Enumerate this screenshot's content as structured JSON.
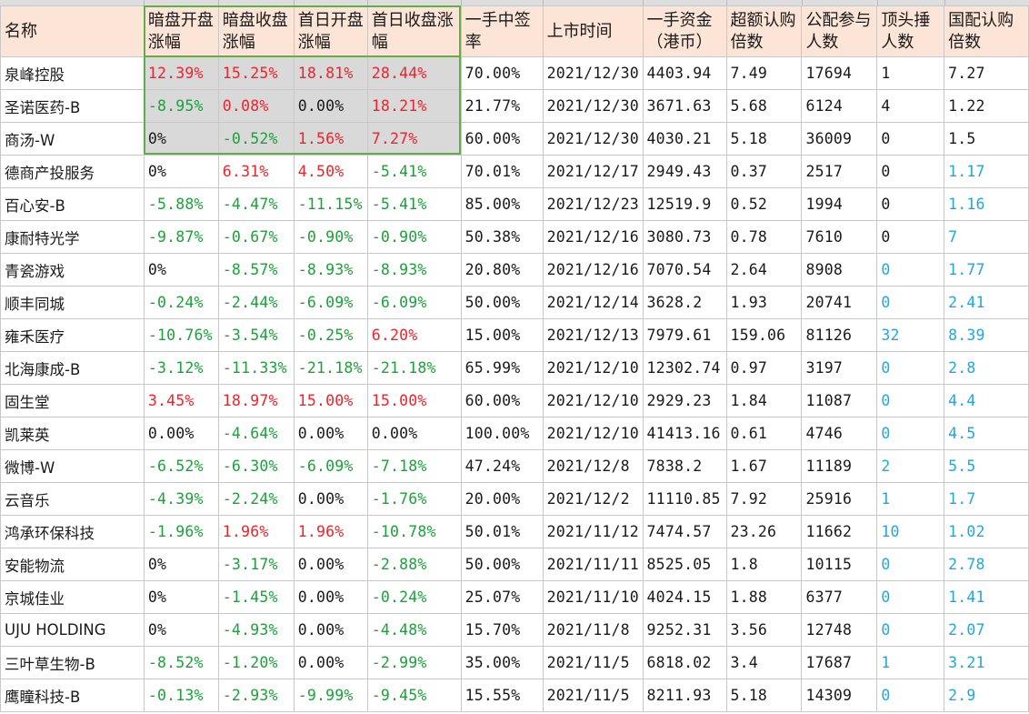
{
  "headers": [
    "名称",
    "暗盘开盘涨幅",
    "暗盘收盘涨幅",
    "首日开盘涨幅",
    "首日收盘涨幅",
    "一手中签率",
    "上市时间",
    "一手资金（港币）",
    "超额认购倍数",
    "公配参与人数",
    "顶头捶人数",
    "国配认购倍数"
  ],
  "rows": [
    [
      "泉峰控股",
      "12.39%",
      "15.25%",
      "18.81%",
      "28.44%",
      "70.00%",
      "2021/12/30",
      "4403.94",
      "7.49",
      "17694",
      "1",
      "7.27"
    ],
    [
      "圣诺医药-B",
      "-8.95%",
      "0.08%",
      "0.00%",
      "18.21%",
      "21.77%",
      "2021/12/30",
      "3671.63",
      "5.68",
      "6124",
      "4",
      "1.22"
    ],
    [
      "商汤-W",
      "0%",
      "-0.52%",
      "1.56%",
      "7.27%",
      "60.00%",
      "2021/12/30",
      "4030.21",
      "5.18",
      "36009",
      "0",
      "1.5"
    ],
    [
      "德商产投服务",
      "0%",
      "6.31%",
      "4.50%",
      "-5.41%",
      "70.01%",
      "2021/12/17",
      "2949.43",
      "0.37",
      "2517",
      "0",
      "1.17"
    ],
    [
      "百心安-B",
      "-5.88%",
      "-4.47%",
      "-11.15%",
      "-5.41%",
      "85.00%",
      "2021/12/23",
      "12519.9",
      "0.52",
      "1994",
      "0",
      "1.16"
    ],
    [
      "康耐特光学",
      "-9.87%",
      "-0.67%",
      "-0.90%",
      "-0.90%",
      "50.38%",
      "2021/12/16",
      "3080.73",
      "0.78",
      "7610",
      "0",
      "7"
    ],
    [
      "青瓷游戏",
      "0%",
      "-8.57%",
      "-8.93%",
      "-8.93%",
      "20.80%",
      "2021/12/16",
      "7070.54",
      "2.64",
      "8908",
      "0",
      "1.77"
    ],
    [
      "顺丰同城",
      "-0.24%",
      "-2.44%",
      "-6.09%",
      "-6.09%",
      "50.00%",
      "2021/12/14",
      "3628.2",
      "1.93",
      "20741",
      "0",
      "2.41"
    ],
    [
      "雍禾医疗",
      "-10.76%",
      "-3.54%",
      "-0.25%",
      "6.20%",
      "15.00%",
      "2021/12/13",
      "7979.61",
      "159.06",
      "81126",
      "32",
      "8.39"
    ],
    [
      "北海康成-B",
      "-3.12%",
      "-11.33%",
      "-21.18%",
      "-21.18%",
      "65.99%",
      "2021/12/10",
      "12302.74",
      "0.97",
      "3197",
      "0",
      "2.8"
    ],
    [
      "固生堂",
      "3.45%",
      "18.97%",
      "15.00%",
      "15.00%",
      "60.00%",
      "2021/12/10",
      "2929.23",
      "1.84",
      "11087",
      "0",
      "4.4"
    ],
    [
      "凯莱英",
      "0.00%",
      "-4.64%",
      "0.00%",
      "0.00%",
      "100.00%",
      "2021/12/10",
      "41413.16",
      "0.61",
      "4746",
      "0",
      "4.5"
    ],
    [
      "微博-W",
      "-6.52%",
      "-6.30%",
      "-6.09%",
      "-7.18%",
      "47.24%",
      "2021/12/8",
      "7838.2",
      "1.67",
      "11189",
      "2",
      "5.5"
    ],
    [
      "云音乐",
      "-4.39%",
      "-2.24%",
      "0.00%",
      "-1.76%",
      "20.00%",
      "2021/12/2",
      "11110.85",
      "7.92",
      "25916",
      "1",
      "1.7"
    ],
    [
      "鸿承环保科技",
      "-1.96%",
      "1.96%",
      "1.96%",
      "-10.78%",
      "50.01%",
      "2021/11/12",
      "7474.57",
      "23.26",
      "11662",
      "10",
      "1.02"
    ],
    [
      "安能物流",
      "0%",
      "-3.17%",
      "0.00%",
      "-2.88%",
      "50.00%",
      "2021/11/11",
      "8525.05",
      "1.8",
      "10115",
      "0",
      "2.78"
    ],
    [
      "京城佳业",
      "0%",
      "-1.45%",
      "0.00%",
      "-0.24%",
      "25.07%",
      "2021/11/10",
      "4024.15",
      "1.88",
      "6377",
      "0",
      "1.41"
    ],
    [
      "UJU HOLDING",
      "0%",
      "-4.93%",
      "0.00%",
      "-4.48%",
      "15.70%",
      "2021/11/8",
      "9252.31",
      "3.56",
      "12748",
      "0",
      "2.07"
    ],
    [
      "三叶草生物-B",
      "-8.52%",
      "-1.20%",
      "0.00%",
      "-2.99%",
      "35.00%",
      "2021/11/5",
      "6818.02",
      "3.4",
      "17687",
      "1",
      "3.21"
    ],
    [
      "鹰瞳科技-B",
      "-0.13%",
      "-2.93%",
      "-9.99%",
      "-9.45%",
      "15.55%",
      "2021/11/5",
      "8211.93",
      "5.18",
      "14309",
      "0",
      "2.9"
    ]
  ],
  "colors": {
    "header_bg": "#fce4d6",
    "selection_bg": "#d9d9d9",
    "selection_border": "#5fae4a",
    "positive": "#e8262c",
    "negative": "#1ea03b",
    "blue": "#22a8d8",
    "neutral": "#1a1a1a"
  },
  "cell_colors": [
    [
      "black",
      "red",
      "red",
      "red",
      "red",
      "black",
      "black",
      "black",
      "black",
      "black",
      "black",
      "black"
    ],
    [
      "black",
      "green",
      "red",
      "black",
      "red",
      "black",
      "black",
      "black",
      "black",
      "black",
      "black",
      "black"
    ],
    [
      "black",
      "black",
      "green",
      "red",
      "red",
      "black",
      "black",
      "black",
      "black",
      "black",
      "black",
      "black"
    ],
    [
      "black",
      "black",
      "red",
      "red",
      "green",
      "black",
      "black",
      "black",
      "black",
      "black",
      "black",
      "blue"
    ],
    [
      "black",
      "green",
      "green",
      "green",
      "green",
      "black",
      "black",
      "black",
      "black",
      "black",
      "black",
      "blue"
    ],
    [
      "black",
      "green",
      "green",
      "green",
      "green",
      "black",
      "black",
      "black",
      "black",
      "black",
      "black",
      "blue"
    ],
    [
      "black",
      "black",
      "green",
      "green",
      "green",
      "black",
      "black",
      "black",
      "black",
      "black",
      "blue",
      "blue"
    ],
    [
      "black",
      "green",
      "green",
      "green",
      "green",
      "black",
      "black",
      "black",
      "black",
      "black",
      "blue",
      "blue"
    ],
    [
      "black",
      "green",
      "green",
      "green",
      "red",
      "black",
      "black",
      "black",
      "black",
      "black",
      "blue",
      "blue"
    ],
    [
      "black",
      "green",
      "green",
      "green",
      "green",
      "black",
      "black",
      "black",
      "black",
      "black",
      "blue",
      "blue"
    ],
    [
      "black",
      "red",
      "red",
      "red",
      "red",
      "black",
      "black",
      "black",
      "black",
      "black",
      "blue",
      "blue"
    ],
    [
      "black",
      "black",
      "green",
      "black",
      "black",
      "black",
      "black",
      "black",
      "black",
      "black",
      "blue",
      "blue"
    ],
    [
      "black",
      "green",
      "green",
      "green",
      "green",
      "black",
      "black",
      "black",
      "black",
      "black",
      "blue",
      "blue"
    ],
    [
      "black",
      "green",
      "green",
      "black",
      "green",
      "black",
      "black",
      "black",
      "black",
      "black",
      "blue",
      "blue"
    ],
    [
      "black",
      "green",
      "red",
      "red",
      "green",
      "black",
      "black",
      "black",
      "black",
      "black",
      "blue",
      "blue"
    ],
    [
      "black",
      "black",
      "green",
      "black",
      "green",
      "black",
      "black",
      "black",
      "black",
      "black",
      "blue",
      "blue"
    ],
    [
      "black",
      "black",
      "green",
      "black",
      "green",
      "black",
      "black",
      "black",
      "black",
      "black",
      "blue",
      "blue"
    ],
    [
      "black",
      "black",
      "green",
      "black",
      "green",
      "black",
      "black",
      "black",
      "black",
      "black",
      "blue",
      "blue"
    ],
    [
      "black",
      "green",
      "green",
      "black",
      "green",
      "black",
      "black",
      "black",
      "black",
      "black",
      "blue",
      "blue"
    ],
    [
      "black",
      "green",
      "green",
      "green",
      "green",
      "black",
      "black",
      "black",
      "black",
      "black",
      "blue",
      "blue"
    ]
  ],
  "selected_range": {
    "first_row": 0,
    "last_row": 2,
    "first_col": 1,
    "last_col": 4
  }
}
